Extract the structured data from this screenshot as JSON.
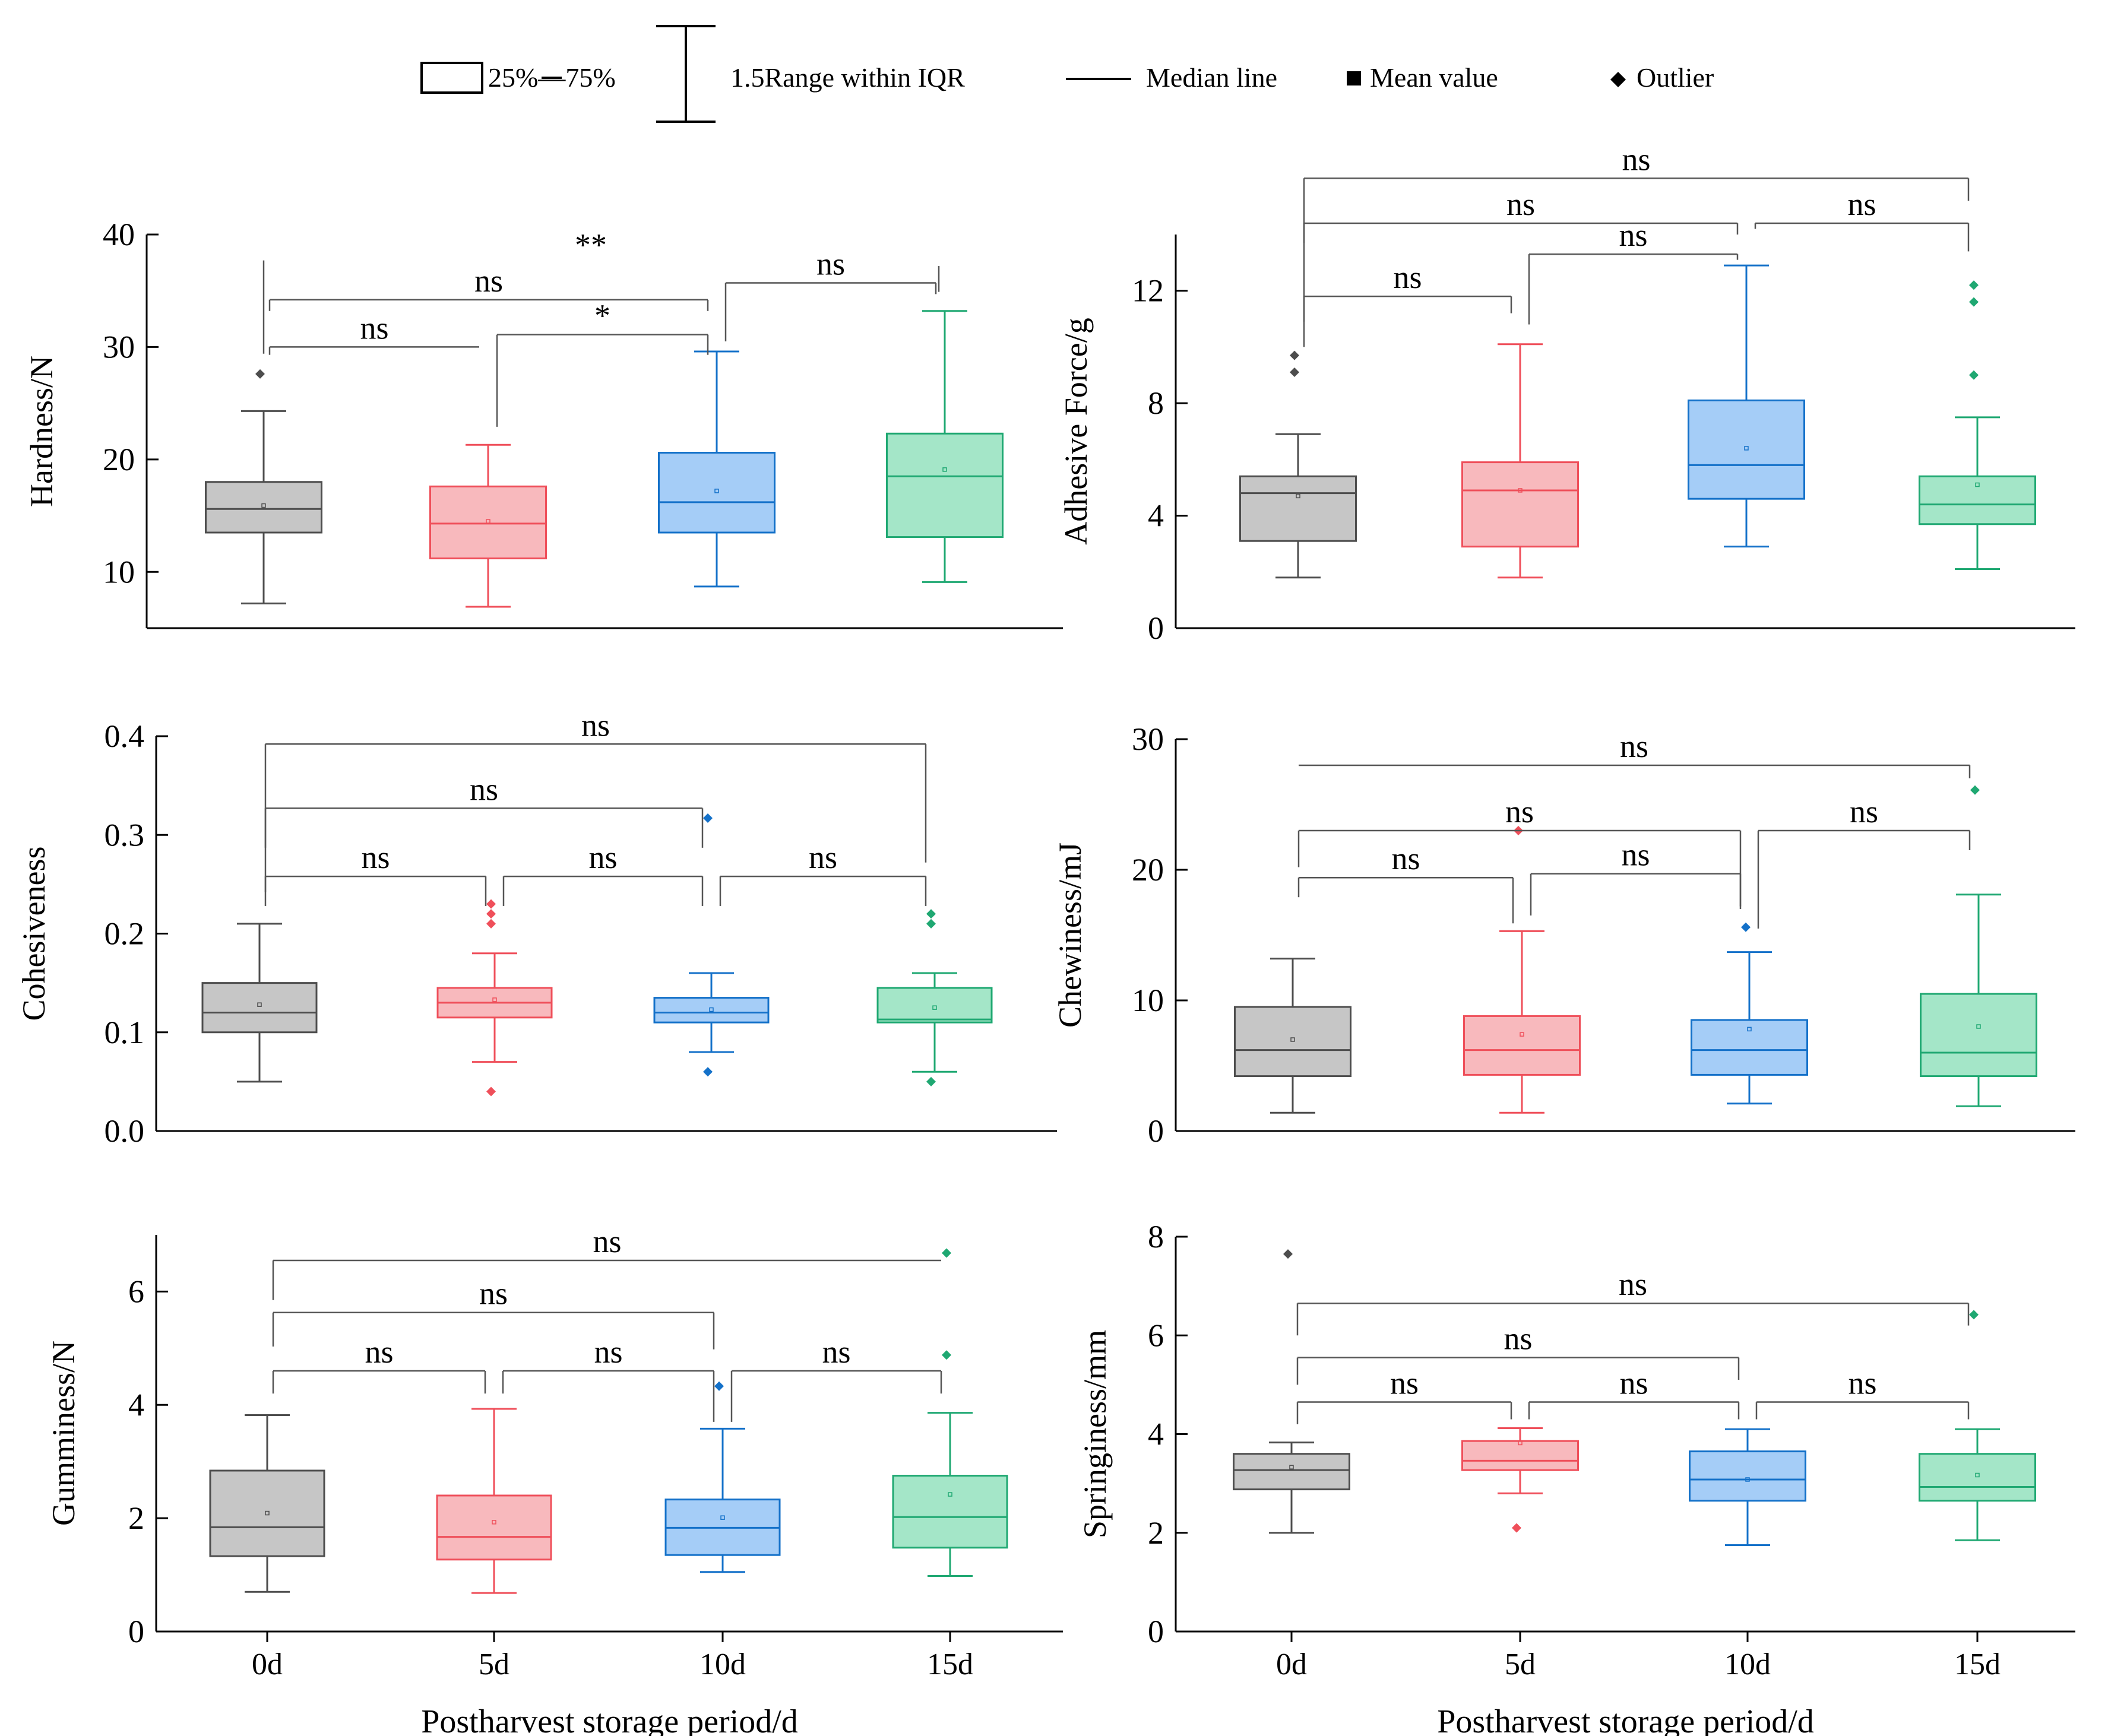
{
  "legend": {
    "box_label": "25%—75%",
    "whisker_label": "1.5Range within IQR",
    "median_label": "Median line",
    "mean_label": "Mean value",
    "outlier_label": "Outlier"
  },
  "colors": {
    "gray": {
      "stroke": "#4d4d4d",
      "fill": "#c6c6c6"
    },
    "red": {
      "stroke": "#ef4f5a",
      "fill": "#f8b9bd"
    },
    "blue": {
      "stroke": "#1471c9",
      "fill": "#a5cdf7"
    },
    "green": {
      "stroke": "#1fa872",
      "fill": "#a4e6c8"
    }
  },
  "chart_data": [
    {
      "type": "box",
      "panel": "top-left",
      "title": "",
      "ylabel": "Hardness/N",
      "xlabel": "",
      "ylim": [
        5,
        40
      ],
      "yticks": [
        10,
        20,
        30,
        40
      ],
      "ytick_labels": [
        "10",
        "20",
        "30",
        "40"
      ],
      "categories": [
        "0d",
        "5d",
        "10d",
        "15d"
      ],
      "show_xticks": false,
      "boxes": [
        {
          "color": "gray",
          "min": 7.2,
          "q1": 13.5,
          "median": 15.6,
          "q3": 18.0,
          "max": 24.3,
          "mean": 15.9,
          "outliers": [
            27.6
          ]
        },
        {
          "color": "red",
          "min": 6.9,
          "q1": 11.2,
          "median": 14.3,
          "q3": 17.6,
          "max": 21.3,
          "mean": 14.5,
          "outliers": []
        },
        {
          "color": "blue",
          "min": 8.7,
          "q1": 13.5,
          "median": 16.2,
          "q3": 20.6,
          "max": 29.6,
          "mean": 17.2,
          "outliers": []
        },
        {
          "color": "green",
          "min": 9.1,
          "q1": 13.1,
          "median": 18.5,
          "q3": 22.3,
          "max": 33.2,
          "mean": 19.1,
          "outliers": []
        }
      ],
      "significance": [
        {
          "label": "ns",
          "from": 0,
          "to": 1,
          "y": 30.0,
          "drop_left": 0.7,
          "drop_right": 0.0
        },
        {
          "label": "*",
          "from": 1,
          "to": 2,
          "y": 31.1,
          "drop_left": 8.2,
          "drop_right": 1.8
        },
        {
          "label": "ns",
          "from": 0,
          "to": 2,
          "y": 34.2,
          "drop_left": 1.0,
          "drop_right": 1.0
        },
        {
          "label": "ns",
          "from": 2,
          "to": 3,
          "y": 35.7,
          "drop_left": 5.2,
          "drop_right": 1.0
        },
        {
          "label": "**",
          "from": 0,
          "to": 3,
          "y": 37.4,
          "drop_left": 0.0,
          "drop_right": 0.0,
          "hidden_line": true
        }
      ]
    },
    {
      "type": "box",
      "panel": "top-right",
      "title": "",
      "ylabel": "Adhesive Force/g",
      "xlabel": "",
      "ylim": [
        0,
        14
      ],
      "yticks": [
        0,
        4,
        8,
        12
      ],
      "ytick_labels": [
        "0",
        "4",
        "8",
        "12"
      ],
      "categories": [
        "0d",
        "5d",
        "10d",
        "15d"
      ],
      "show_xticks": false,
      "boxes": [
        {
          "color": "gray",
          "min": 1.8,
          "q1": 3.1,
          "median": 4.8,
          "q3": 5.4,
          "max": 6.9,
          "mean": 4.7,
          "outliers": [
            9.1,
            9.7
          ]
        },
        {
          "color": "red",
          "min": 1.8,
          "q1": 2.9,
          "median": 4.9,
          "q3": 5.9,
          "max": 10.1,
          "mean": 4.9,
          "outliers": []
        },
        {
          "color": "blue",
          "min": 2.9,
          "q1": 4.6,
          "median": 5.8,
          "q3": 8.1,
          "max": 12.9,
          "mean": 6.4,
          "outliers": []
        },
        {
          "color": "green",
          "min": 2.1,
          "q1": 3.7,
          "median": 4.4,
          "q3": 5.4,
          "max": 7.5,
          "mean": 5.1,
          "outliers": [
            9.0,
            11.6,
            12.2
          ]
        }
      ],
      "significance": [
        {
          "label": "ns",
          "from": 0,
          "to": 1,
          "y": 11.8,
          "drop_left": 1.8,
          "drop_right": 0.6
        },
        {
          "label": "ns",
          "from": 1,
          "to": 2,
          "y": 13.3,
          "drop_left": 2.5,
          "drop_right": 0.2
        },
        {
          "label": "ns",
          "from": 0,
          "to": 2,
          "y": 14.4,
          "drop_left": 3.5,
          "drop_right": 0.4
        },
        {
          "label": "ns",
          "from": 2,
          "to": 3,
          "y": 14.4,
          "drop_left": 0.2,
          "drop_right": 1.0
        },
        {
          "label": "ns",
          "from": 0,
          "to": 3,
          "y": 16.0,
          "drop_left": 2.3,
          "drop_right": 0.8
        }
      ]
    },
    {
      "type": "box",
      "panel": "middle-left",
      "title": "",
      "ylabel": "Cohesiveness",
      "xlabel": "",
      "ylim": [
        0.0,
        0.4
      ],
      "yticks": [
        0.0,
        0.1,
        0.2,
        0.3,
        0.4
      ],
      "ytick_labels": [
        "0.0",
        "0.1",
        "0.2",
        "0.3",
        "0.4"
      ],
      "categories": [
        "0d",
        "5d",
        "10d",
        "15d"
      ],
      "show_xticks": false,
      "boxes": [
        {
          "color": "gray",
          "min": 0.05,
          "q1": 0.1,
          "median": 0.12,
          "q3": 0.15,
          "max": 0.21,
          "mean": 0.128,
          "outliers": []
        },
        {
          "color": "red",
          "min": 0.07,
          "q1": 0.115,
          "median": 0.13,
          "q3": 0.145,
          "max": 0.18,
          "mean": 0.133,
          "outliers": [
            0.04,
            0.21,
            0.22,
            0.23
          ]
        },
        {
          "color": "blue",
          "min": 0.08,
          "q1": 0.11,
          "median": 0.12,
          "q3": 0.135,
          "max": 0.16,
          "mean": 0.123,
          "outliers": [
            0.06,
            0.317
          ]
        },
        {
          "color": "green",
          "min": 0.06,
          "q1": 0.11,
          "median": 0.113,
          "q3": 0.145,
          "max": 0.16,
          "mean": 0.125,
          "outliers": [
            0.05,
            0.21,
            0.22
          ]
        }
      ],
      "significance": [
        {
          "label": "ns",
          "from": 0,
          "to": 1,
          "y": 0.258,
          "drop_left": 0.03,
          "drop_right": 0.03
        },
        {
          "label": "ns",
          "from": 1,
          "to": 2,
          "y": 0.258,
          "drop_left": 0.03,
          "drop_right": 0.03
        },
        {
          "label": "ns",
          "from": 2,
          "to": 3,
          "y": 0.258,
          "drop_left": 0.03,
          "drop_right": 0.03
        },
        {
          "label": "ns",
          "from": 0,
          "to": 2,
          "y": 0.327,
          "drop_left": 0.04,
          "drop_right": 0.04
        },
        {
          "label": "ns",
          "from": 0,
          "to": 3,
          "y": 0.392,
          "drop_left": 0.15,
          "drop_right": 0.12
        }
      ]
    },
    {
      "type": "box",
      "panel": "middle-right",
      "title": "",
      "ylabel": "Chewiness/mJ",
      "xlabel": "",
      "ylim": [
        0,
        30
      ],
      "yticks": [
        0,
        10,
        20,
        30
      ],
      "ytick_labels": [
        "0",
        "10",
        "20",
        "30"
      ],
      "categories": [
        "0d",
        "5d",
        "10d",
        "15d"
      ],
      "show_xticks": false,
      "boxes": [
        {
          "color": "gray",
          "min": 1.4,
          "q1": 4.2,
          "median": 6.2,
          "q3": 9.5,
          "max": 13.2,
          "mean": 7.0,
          "outliers": []
        },
        {
          "color": "red",
          "min": 1.4,
          "q1": 4.3,
          "median": 6.2,
          "q3": 8.8,
          "max": 15.3,
          "mean": 7.4,
          "outliers": [
            23.0
          ]
        },
        {
          "color": "blue",
          "min": 2.1,
          "q1": 4.3,
          "median": 6.2,
          "q3": 8.5,
          "max": 13.7,
          "mean": 7.8,
          "outliers": [
            15.6
          ]
        },
        {
          "color": "green",
          "min": 1.9,
          "q1": 4.2,
          "median": 6.0,
          "q3": 10.5,
          "max": 18.1,
          "mean": 8.0,
          "outliers": [
            26.1
          ]
        }
      ],
      "significance": [
        {
          "label": "ns",
          "from": 0,
          "to": 1,
          "y": 19.4,
          "drop_left": 1.5,
          "drop_right": 3.5
        },
        {
          "label": "ns",
          "from": 1,
          "to": 2,
          "y": 19.7,
          "drop_left": 3.2,
          "drop_right": 2.5
        },
        {
          "label": "ns",
          "from": 2,
          "to": 3,
          "y": 23.0,
          "drop_left": 7.5,
          "drop_right": 1.5
        },
        {
          "label": "ns",
          "from": 0,
          "to": 2,
          "y": 23.0,
          "drop_left": 2.8,
          "drop_right": 6.0
        },
        {
          "label": "ns",
          "from": 0,
          "to": 3,
          "y": 28.0,
          "drop_left": 0.0,
          "drop_right": 1.0
        }
      ]
    },
    {
      "type": "box",
      "panel": "bottom-left",
      "title": "",
      "ylabel": "Gumminess/N",
      "xlabel": "Postharvest storage period/d",
      "ylim": [
        0,
        7
      ],
      "yticks": [
        0,
        2,
        4,
        6
      ],
      "ytick_labels": [
        "0",
        "2",
        "4",
        "6"
      ],
      "categories": [
        "0d",
        "5d",
        "10d",
        "15d"
      ],
      "show_xticks": true,
      "boxes": [
        {
          "color": "gray",
          "min": 0.7,
          "q1": 1.33,
          "median": 1.84,
          "q3": 2.84,
          "max": 3.82,
          "mean": 2.09,
          "outliers": []
        },
        {
          "color": "red",
          "min": 0.68,
          "q1": 1.27,
          "median": 1.67,
          "q3": 2.4,
          "max": 3.93,
          "mean": 1.93,
          "outliers": []
        },
        {
          "color": "blue",
          "min": 1.05,
          "q1": 1.35,
          "median": 1.83,
          "q3": 2.33,
          "max": 3.58,
          "mean": 2.01,
          "outliers": [
            4.33
          ]
        },
        {
          "color": "green",
          "min": 0.98,
          "q1": 1.48,
          "median": 2.02,
          "q3": 2.75,
          "max": 3.86,
          "mean": 2.42,
          "outliers": [
            4.88,
            6.68
          ]
        }
      ],
      "significance": [
        {
          "label": "ns",
          "from": 0,
          "to": 1,
          "y": 4.6,
          "drop_left": 0.4,
          "drop_right": 0.4
        },
        {
          "label": "ns",
          "from": 1,
          "to": 2,
          "y": 4.6,
          "drop_left": 0.4,
          "drop_right": 0.9
        },
        {
          "label": "ns",
          "from": 2,
          "to": 3,
          "y": 4.6,
          "drop_left": 0.9,
          "drop_right": 0.4
        },
        {
          "label": "ns",
          "from": 0,
          "to": 2,
          "y": 5.63,
          "drop_left": 0.6,
          "drop_right": 0.65
        },
        {
          "label": "ns",
          "from": 0,
          "to": 3,
          "y": 6.55,
          "drop_left": 0.7,
          "drop_right": 0.0
        }
      ]
    },
    {
      "type": "box",
      "panel": "bottom-right",
      "title": "",
      "ylabel": "Springiness/mm",
      "xlabel": "Postharvest storage period/d",
      "ylim": [
        0,
        8
      ],
      "yticks": [
        0,
        2,
        4,
        6,
        8
      ],
      "ytick_labels": [
        "0",
        "2",
        "4",
        "6",
        "8"
      ],
      "categories": [
        "0d",
        "5d",
        "10d",
        "15d"
      ],
      "show_xticks": true,
      "boxes": [
        {
          "color": "gray",
          "min": 2.0,
          "q1": 2.88,
          "median": 3.27,
          "q3": 3.6,
          "max": 3.83,
          "mean": 3.33,
          "outliers": [
            7.65
          ]
        },
        {
          "color": "red",
          "min": 2.8,
          "q1": 3.27,
          "median": 3.46,
          "q3": 3.86,
          "max": 4.12,
          "mean": 3.82,
          "outliers": [
            2.1
          ]
        },
        {
          "color": "blue",
          "min": 1.75,
          "q1": 2.65,
          "median": 3.08,
          "q3": 3.65,
          "max": 4.1,
          "mean": 3.08,
          "outliers": []
        },
        {
          "color": "green",
          "min": 1.85,
          "q1": 2.65,
          "median": 2.93,
          "q3": 3.6,
          "max": 4.1,
          "mean": 3.17,
          "outliers": [
            6.42
          ]
        }
      ],
      "significance": [
        {
          "label": "ns",
          "from": 0,
          "to": 1,
          "y": 4.65,
          "drop_left": 0.45,
          "drop_right": 0.35
        },
        {
          "label": "ns",
          "from": 1,
          "to": 2,
          "y": 4.65,
          "drop_left": 0.35,
          "drop_right": 0.35
        },
        {
          "label": "ns",
          "from": 2,
          "to": 3,
          "y": 4.65,
          "drop_left": 0.35,
          "drop_right": 0.35
        },
        {
          "label": "ns",
          "from": 0,
          "to": 2,
          "y": 5.55,
          "drop_left": 0.55,
          "drop_right": 0.45
        },
        {
          "label": "ns",
          "from": 0,
          "to": 3,
          "y": 6.65,
          "drop_left": 0.65,
          "drop_right": 0.45
        }
      ]
    }
  ]
}
